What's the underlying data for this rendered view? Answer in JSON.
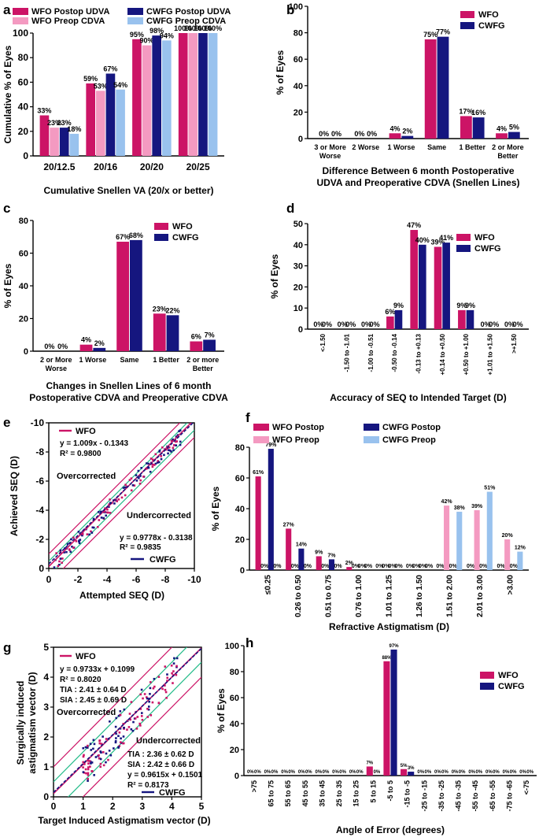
{
  "colors": {
    "wfo_postop": "#cc1466",
    "cwfg_postop": "#15167f",
    "wfo_preop": "#f49ac1",
    "cwfg_preop": "#99c2ee",
    "wfo_line": "#cc1466",
    "cwfg_line": "#15167f",
    "band_green": "#22bb88"
  },
  "chart_data": [
    {
      "id": "a",
      "panel_label": "a",
      "type": "bar",
      "ylabel": "Cumulative % of Eyes",
      "xlabel": "Cumulative Snellen VA (20/x or better)",
      "ylim": [
        0,
        100
      ],
      "yticks": [
        "0",
        "20",
        "40",
        "60",
        "80",
        "100"
      ],
      "categories": [
        "20/12.5",
        "20/16",
        "20/20",
        "20/25"
      ],
      "series": [
        {
          "name": "WFO Postop UDVA",
          "color_key": "wfo_postop",
          "values": [
            33,
            59,
            95,
            100
          ],
          "labels": [
            "33%",
            "59%",
            "95%",
            "100%"
          ]
        },
        {
          "name": "WFO Preop CDVA",
          "color_key": "wfo_preop",
          "values": [
            23,
            53,
            90,
            100
          ],
          "labels": [
            "23%",
            "53%",
            "90%",
            "100%"
          ]
        },
        {
          "name": "CWFG Postop UDVA",
          "color_key": "cwfg_postop",
          "values": [
            23,
            67,
            98,
            100
          ],
          "labels": [
            "23%",
            "67%",
            "98%",
            "100%"
          ]
        },
        {
          "name": "CWFG Preop CDVA",
          "color_key": "cwfg_preop",
          "values": [
            18,
            54,
            94,
            100
          ],
          "labels": [
            "18%",
            "54%",
            "94%",
            "100%"
          ]
        }
      ]
    },
    {
      "id": "b",
      "panel_label": "b",
      "type": "bar",
      "ylabel": "% of Eyes",
      "xlabel_lines": [
        "Difference Between 6 month Postoperative",
        "UDVA and Preoperative CDVA (Snellen Lines)"
      ],
      "ylim": [
        0,
        100
      ],
      "yticks": [
        "0",
        "20",
        "40",
        "60",
        "80",
        "100"
      ],
      "categories": [
        "3 or More\nWorse",
        "2 Worse",
        "1 Worse",
        "Same",
        "1 Better",
        "2 or More\nBetter"
      ],
      "series": [
        {
          "name": "WFO",
          "color_key": "wfo_postop",
          "values": [
            0,
            0,
            4,
            75,
            17,
            4
          ],
          "labels": [
            "0%",
            "0%",
            "4%",
            "75%",
            "17%",
            "4%"
          ]
        },
        {
          "name": "CWFG",
          "color_key": "cwfg_postop",
          "values": [
            0,
            0,
            2,
            77,
            16,
            5
          ],
          "labels": [
            "0%",
            "0%",
            "2%",
            "77%",
            "16%",
            "5%"
          ]
        }
      ]
    },
    {
      "id": "c",
      "panel_label": "c",
      "type": "bar",
      "ylabel": "% of Eyes",
      "xlabel_lines": [
        "Changes in Snellen Lines of 6 month",
        "Postoperative CDVA and Preoperative CDVA"
      ],
      "ylim": [
        0,
        80
      ],
      "yticks": [
        "0",
        "20",
        "40",
        "60",
        "80"
      ],
      "categories": [
        "2 or More\nWorse",
        "1 Worse",
        "Same",
        "1 Better",
        "2 or more\nBetter"
      ],
      "series": [
        {
          "name": "WFO",
          "color_key": "wfo_postop",
          "values": [
            0,
            4,
            67,
            23,
            6
          ],
          "labels": [
            "0%",
            "4%",
            "67%",
            "23%",
            "6%"
          ]
        },
        {
          "name": "CWFG",
          "color_key": "cwfg_postop",
          "values": [
            0,
            2,
            68,
            22,
            7
          ],
          "labels": [
            "0%",
            "2%",
            "68%",
            "22%",
            "7%"
          ]
        }
      ]
    },
    {
      "id": "d",
      "panel_label": "d",
      "type": "bar",
      "ylabel": "% of Eyes",
      "xlabel": "Accuracy of SEQ to Intended Target (D)",
      "ylim": [
        0,
        50
      ],
      "yticks": [
        "0",
        "10",
        "20",
        "30",
        "40",
        "50"
      ],
      "categories": [
        "<-1.50",
        "-1.50 to -1.01",
        "-1.00 to -0.51",
        "-0.50 to -0.14",
        "-0.13 to +0.13",
        "+0.14 to +0.50",
        "+0.50 to +1.00",
        "+1.01 to +1.50",
        ">+1.50"
      ],
      "series": [
        {
          "name": "WFO",
          "color_key": "wfo_postop",
          "values": [
            0,
            0,
            0,
            6,
            47,
            39,
            9,
            0,
            0
          ],
          "labels": [
            "0%",
            "0%",
            "0%",
            "6%",
            "47%",
            "39%",
            "9%",
            "0%",
            "0%"
          ]
        },
        {
          "name": "CWFG",
          "color_key": "cwfg_postop",
          "values": [
            0,
            0,
            0,
            9,
            40,
            41,
            9,
            0,
            0
          ],
          "labels": [
            "0%",
            "0%",
            "0%",
            "9%",
            "40%",
            "41%",
            "9%",
            "0%",
            "0%"
          ]
        }
      ]
    },
    {
      "id": "e",
      "panel_label": "e",
      "type": "scatter",
      "ylabel": "Achieved SEQ (D)",
      "xlabel": "Attempted SEQ (D)",
      "xlim": [
        0,
        -10
      ],
      "ylim": [
        0,
        -10
      ],
      "ticks": [
        "0",
        "-2",
        "-4",
        "-6",
        "-8",
        "-10"
      ],
      "annotations": [
        "Overcorrected",
        "Undercorrected"
      ],
      "series": [
        {
          "name": "WFO",
          "color_key": "wfo_line",
          "equation": "y = 1.009x - 0.1343",
          "r2": "R² = 0.9800",
          "slope": 1.009,
          "intercept": -0.1343
        },
        {
          "name": "CWFG",
          "color_key": "cwfg_line",
          "equation": "y = 0.9778x - 0.3138",
          "r2": "R² = 0.9835",
          "slope": 0.9778,
          "intercept": -0.3138
        }
      ]
    },
    {
      "id": "f",
      "panel_label": "f",
      "type": "bar",
      "ylabel": "% of Eyes",
      "xlabel": "Refractive Astigmatism (D)",
      "ylim": [
        0,
        80
      ],
      "yticks": [
        "0",
        "20",
        "40",
        "60",
        "80"
      ],
      "categories": [
        "≤0.25",
        "0.26 to 0.50",
        "0.51 to 0.75",
        "0.76 to 1.00",
        "1.01 to 1.25",
        "1.26 to 1.50",
        "1.51 to 2.00",
        "2.01 to 3.00",
        ">3.00"
      ],
      "series": [
        {
          "name": "WFO Postop",
          "color_key": "wfo_postop",
          "values": [
            61,
            27,
            9,
            2,
            0,
            0,
            0,
            0,
            0
          ],
          "labels": [
            "61%",
            "27%",
            "9%",
            "2%",
            "0%",
            "0%",
            "0%",
            "0%",
            "0%"
          ]
        },
        {
          "name": "WFO Preop",
          "color_key": "wfo_preop",
          "values": [
            0,
            0,
            0,
            0,
            0,
            0,
            42,
            39,
            20
          ],
          "labels": [
            "0%",
            "0%",
            "0%",
            "0%",
            "0%",
            "0%",
            "42%",
            "39%",
            "20%"
          ]
        },
        {
          "name": "CWFG Postop",
          "color_key": "cwfg_postop",
          "values": [
            79,
            14,
            7,
            0,
            0,
            0,
            0,
            0,
            0
          ],
          "labels": [
            "79%",
            "14%",
            "7%",
            "0%",
            "0%",
            "0%",
            "0%",
            "0%",
            "0%"
          ]
        },
        {
          "name": "CWFG Preop",
          "color_key": "cwfg_preop",
          "values": [
            0,
            0,
            0,
            0,
            0,
            0,
            38,
            51,
            12
          ],
          "labels": [
            "0%",
            "0%",
            "0%",
            "0%",
            "0%",
            "0%",
            "38%",
            "51%",
            "12%"
          ]
        }
      ]
    },
    {
      "id": "g",
      "panel_label": "g",
      "type": "scatter",
      "ylabel_lines": [
        "Surgically induced",
        "astigmatism vector (D)"
      ],
      "xlabel": "Target Induced Astigmatism vector (D)",
      "xlim": [
        0,
        5
      ],
      "ylim": [
        0,
        5
      ],
      "ticks": [
        "0",
        "1",
        "2",
        "3",
        "4",
        "5"
      ],
      "annotations": [
        "Overcorrected",
        "Undercorrected"
      ],
      "series": [
        {
          "name": "WFO",
          "color_key": "wfo_line",
          "equation": "y = 0.9733x + 0.1099",
          "r2": "R² = 0.8020",
          "tia": "TIA : 2.41 ± 0.64 D",
          "sia": "SIA : 2.45 ± 0.69 D",
          "slope": 0.9733,
          "intercept": 0.1099
        },
        {
          "name": "CWFG",
          "color_key": "cwfg_line",
          "equation": "y = 0.9615x + 0.1501",
          "r2": "R² = 0.8173",
          "tia": "TIA : 2.36 ± 0.62 D",
          "sia": "SIA : 2.42 ± 0.66 D",
          "slope": 0.9615,
          "intercept": 0.1501
        }
      ]
    },
    {
      "id": "h",
      "panel_label": "h",
      "type": "bar",
      "ylabel": "% of Eyes",
      "xlabel": "Angle of Error (degrees)",
      "ylim": [
        0,
        100
      ],
      "yticks": [
        "0",
        "20",
        "40",
        "60",
        "80",
        "100"
      ],
      "categories": [
        ">75",
        "65 to 75",
        "55 to 65",
        "45 to 55",
        "35 to 45",
        "25 to 35",
        "15 to 25",
        "5 to 15",
        "-5 to 5",
        "-15 to -5",
        "-25 to -15",
        "-35 to -25",
        "-45 to -35",
        "-55 to -45",
        "-65 to -55",
        "-75 to -65",
        "<-75"
      ],
      "series": [
        {
          "name": "WFO",
          "color_key": "wfo_postop",
          "values": [
            0,
            0,
            0,
            0,
            0,
            0,
            0,
            7,
            88,
            5,
            0,
            0,
            0,
            0,
            0,
            0,
            0
          ],
          "labels": [
            "0%",
            "0%",
            "0%",
            "0%",
            "0%",
            "0%",
            "0%",
            "7%",
            "88%",
            "5%",
            "0%",
            "0%",
            "0%",
            "0%",
            "0%",
            "0%",
            "0%"
          ]
        },
        {
          "name": "CWFG",
          "color_key": "cwfg_postop",
          "values": [
            0,
            0,
            0,
            0,
            0,
            0,
            0,
            0,
            97,
            3,
            0,
            0,
            0,
            0,
            0,
            0,
            0
          ],
          "labels": [
            "0%",
            "0%",
            "0%",
            "0%",
            "0%",
            "0%",
            "0%",
            "0%",
            "97%",
            "3%",
            "0%",
            "0%",
            "0%",
            "0%",
            "0%",
            "0%",
            "0%"
          ]
        }
      ]
    }
  ]
}
